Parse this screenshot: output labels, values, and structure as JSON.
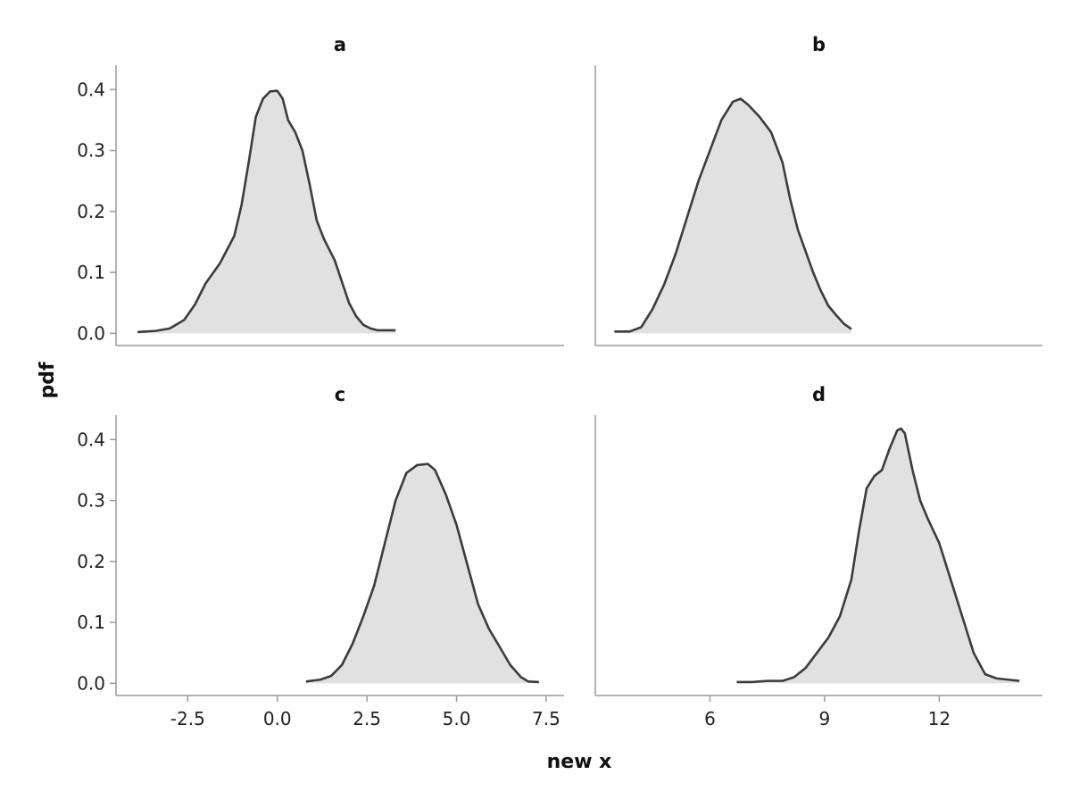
{
  "chart_data": {
    "type": "area",
    "description_free": true,
    "ylabel": "pdf",
    "xlabel": "new x",
    "fill_color": "#e1e1e1",
    "line_color": "#3c3c3c",
    "axis_color": "#9a9a9a",
    "panels": [
      {
        "title": "a",
        "xlim": [
          -4.5,
          8.0
        ],
        "ylim": [
          -0.02,
          0.44
        ],
        "yticks": [
          0.0,
          0.1,
          0.2,
          0.3,
          0.4
        ],
        "ytick_labels": [
          "0.0",
          "0.1",
          "0.2",
          "0.3",
          "0.4"
        ],
        "xticks": [],
        "xtick_labels": [],
        "x": [
          -3.9,
          -3.4,
          -3.0,
          -2.6,
          -2.3,
          -2.0,
          -1.6,
          -1.2,
          -1.0,
          -0.8,
          -0.6,
          -0.4,
          -0.2,
          0.0,
          0.15,
          0.3,
          0.5,
          0.7,
          0.9,
          1.1,
          1.3,
          1.6,
          1.8,
          2.0,
          2.2,
          2.4,
          2.6,
          2.8,
          3.0,
          3.3
        ],
        "y": [
          0.002,
          0.004,
          0.008,
          0.022,
          0.047,
          0.082,
          0.115,
          0.16,
          0.21,
          0.28,
          0.355,
          0.385,
          0.397,
          0.398,
          0.385,
          0.35,
          0.33,
          0.3,
          0.245,
          0.185,
          0.155,
          0.12,
          0.085,
          0.05,
          0.028,
          0.014,
          0.008,
          0.005,
          0.005,
          0.005
        ]
      },
      {
        "title": "b",
        "xlim": [
          3.0,
          14.7
        ],
        "ylim": [
          -0.02,
          0.44
        ],
        "yticks": [],
        "ytick_labels": [],
        "xticks": [],
        "xtick_labels": [],
        "x": [
          3.5,
          3.9,
          4.2,
          4.5,
          4.8,
          5.1,
          5.4,
          5.7,
          6.0,
          6.3,
          6.6,
          6.8,
          7.0,
          7.3,
          7.6,
          7.9,
          8.1,
          8.3,
          8.5,
          8.7,
          8.9,
          9.1,
          9.3,
          9.5,
          9.7
        ],
        "y": [
          0.003,
          0.003,
          0.01,
          0.04,
          0.08,
          0.13,
          0.19,
          0.25,
          0.3,
          0.35,
          0.38,
          0.385,
          0.375,
          0.355,
          0.33,
          0.28,
          0.22,
          0.17,
          0.135,
          0.1,
          0.07,
          0.045,
          0.03,
          0.016,
          0.007
        ]
      },
      {
        "title": "c",
        "xlim": [
          -4.5,
          8.0
        ],
        "ylim": [
          -0.02,
          0.44
        ],
        "yticks": [
          0.0,
          0.1,
          0.2,
          0.3,
          0.4
        ],
        "ytick_labels": [
          "0.0",
          "0.1",
          "0.2",
          "0.3",
          "0.4"
        ],
        "xticks": [
          -2.5,
          0.0,
          2.5,
          5.0,
          7.5
        ],
        "xtick_labels": [
          "-2.5",
          "0.0",
          "2.5",
          "5.0",
          "7.5"
        ],
        "x": [
          0.8,
          1.2,
          1.5,
          1.8,
          2.1,
          2.4,
          2.7,
          3.0,
          3.3,
          3.6,
          3.9,
          4.2,
          4.4,
          4.7,
          5.0,
          5.3,
          5.6,
          5.9,
          6.2,
          6.5,
          6.8,
          7.0,
          7.3
        ],
        "y": [
          0.003,
          0.006,
          0.012,
          0.03,
          0.065,
          0.11,
          0.16,
          0.23,
          0.3,
          0.345,
          0.358,
          0.36,
          0.35,
          0.31,
          0.26,
          0.195,
          0.13,
          0.09,
          0.06,
          0.03,
          0.01,
          0.003,
          0.002
        ]
      },
      {
        "title": "d",
        "xlim": [
          3.0,
          14.7
        ],
        "ylim": [
          -0.02,
          0.44
        ],
        "yticks": [],
        "ytick_labels": [],
        "xticks": [
          6,
          9,
          12
        ],
        "xtick_labels": [
          "6",
          "9",
          "12"
        ],
        "x": [
          6.7,
          7.1,
          7.5,
          7.9,
          8.2,
          8.5,
          8.8,
          9.1,
          9.4,
          9.7,
          9.9,
          10.1,
          10.3,
          10.5,
          10.7,
          10.9,
          11.0,
          11.1,
          11.3,
          11.5,
          11.7,
          12.0,
          12.3,
          12.6,
          12.9,
          13.2,
          13.5,
          13.8,
          14.1
        ],
        "y": [
          0.002,
          0.002,
          0.004,
          0.004,
          0.01,
          0.025,
          0.05,
          0.075,
          0.11,
          0.17,
          0.25,
          0.32,
          0.34,
          0.35,
          0.385,
          0.415,
          0.418,
          0.41,
          0.35,
          0.3,
          0.27,
          0.23,
          0.17,
          0.11,
          0.05,
          0.015,
          0.008,
          0.006,
          0.004
        ]
      }
    ]
  }
}
